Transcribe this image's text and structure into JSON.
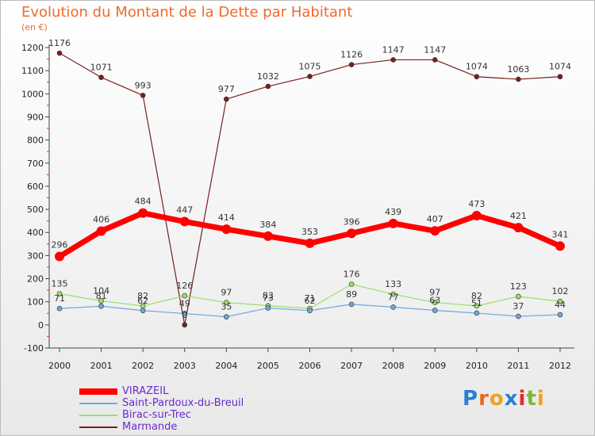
{
  "title": "Evolution du Montant de la Dette par Habitant",
  "subtitle": "(en €)",
  "logo": {
    "text": "Proxiti",
    "letters": [
      "P",
      "r",
      "o",
      "x",
      "i",
      "t",
      "i"
    ],
    "colors": [
      "#2a7fd0",
      "#e46a1a",
      "#f0a020",
      "#2a7fd0",
      "#e22b2b",
      "#7ab83a",
      "#f0a020"
    ]
  },
  "chart_data": {
    "type": "line",
    "title": "Evolution du Montant de la Dette par Habitant",
    "ylabel": "(en €)",
    "x": [
      "2000",
      "2001",
      "2002",
      "2003",
      "2004",
      "2005",
      "2006",
      "2007",
      "2008",
      "2009",
      "2010",
      "2011",
      "2012"
    ],
    "ylim": [
      -100,
      1200
    ],
    "yticks": [
      "1200",
      "1100",
      "1000",
      "900",
      "800",
      "700",
      "600",
      "500",
      "400",
      "300",
      "200",
      "100",
      "0",
      "-100"
    ],
    "grid": false,
    "legend_position": "bottom-left",
    "series": [
      {
        "name": "VIRAZEIL",
        "color": "#ff0000",
        "values": [
          296,
          406,
          484,
          447,
          414,
          384,
          353,
          396,
          439,
          407,
          473,
          421,
          341
        ]
      },
      {
        "name": "Saint-Pardoux-du-Breuil",
        "color": "#6fa8dc",
        "values": [
          71,
          81,
          62,
          49,
          35,
          73,
          62,
          89,
          77,
          63,
          51,
          37,
          44
        ]
      },
      {
        "name": "Birac-sur-Trec",
        "color": "#9ade6a",
        "values": [
          135,
          104,
          82,
          126,
          97,
          83,
          71,
          176,
          133,
          97,
          82,
          123,
          102
        ]
      },
      {
        "name": "Marmande",
        "color": "#7a1f1f",
        "values": [
          1176,
          1071,
          993,
          0,
          977,
          1032,
          1075,
          1126,
          1147,
          1147,
          1074,
          1063,
          1074
        ]
      }
    ],
    "labels": [
      [
        "296",
        "406",
        "484",
        "447",
        "414",
        "384",
        "353",
        "396",
        "439",
        "407",
        "473",
        "421",
        "341"
      ],
      [
        "71",
        "81",
        "62",
        "49",
        "35",
        "73",
        "62",
        "89",
        "77",
        "63",
        "51",
        "37",
        "44"
      ],
      [
        "135",
        "104",
        "82",
        "126",
        "97",
        "83",
        "71",
        "176",
        "133",
        "97",
        "82",
        "123",
        "102"
      ],
      [
        "1176",
        "1071",
        "993",
        "0",
        "977",
        "1032",
        "1075",
        "1126",
        "1147",
        "1147",
        "1074",
        "1063",
        "1074"
      ]
    ]
  }
}
